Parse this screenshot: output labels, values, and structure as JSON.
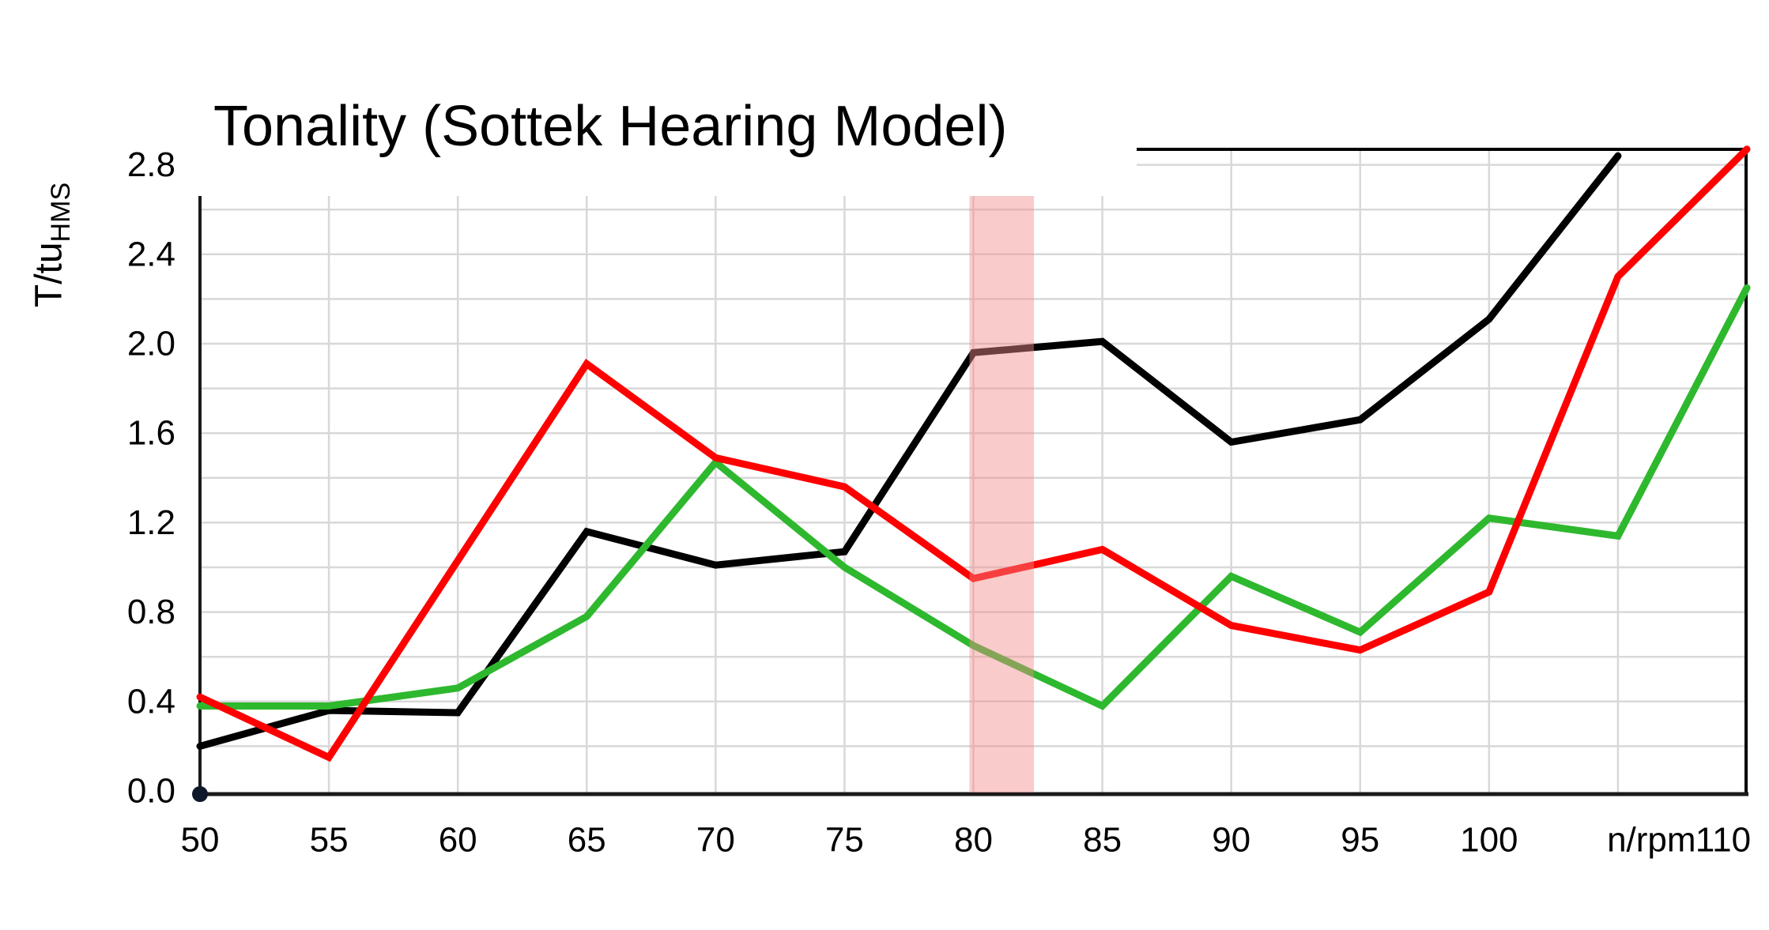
{
  "chart_data": {
    "type": "line",
    "title": "Tonality (Sottek Hearing Model)",
    "y_axis_title": {
      "main": "T/tu",
      "sub": "HMS"
    },
    "x_unit_label": "n/rpm",
    "x_unit_label_position": 106.3,
    "xlim": [
      50,
      110
    ],
    "ylim": [
      0,
      2.877
    ],
    "grid": {
      "on": true,
      "x_step": 5,
      "y_step": 0.2
    },
    "x_ticks": [
      {
        "value": 50,
        "label": "50",
        "offset": 0
      },
      {
        "value": 55,
        "label": "55",
        "offset": 0
      },
      {
        "value": 60,
        "label": "60",
        "offset": 0
      },
      {
        "value": 65,
        "label": "65",
        "offset": 0
      },
      {
        "value": 70,
        "label": "70",
        "offset": 0
      },
      {
        "value": 75,
        "label": "75",
        "offset": 0
      },
      {
        "value": 80,
        "label": "80",
        "offset": 0
      },
      {
        "value": 85,
        "label": "85",
        "offset": 0
      },
      {
        "value": 90,
        "label": "90",
        "offset": 0
      },
      {
        "value": 95,
        "label": "95",
        "offset": 0
      },
      {
        "value": 100,
        "label": "100",
        "offset": 0
      },
      {
        "value": 110,
        "label": "110",
        "offset": -30
      }
    ],
    "y_ticks": [
      {
        "value": 0.0,
        "label": "0.0"
      },
      {
        "value": 0.4,
        "label": "0.4"
      },
      {
        "value": 0.8,
        "label": "0.8"
      },
      {
        "value": 1.2,
        "label": "1.2"
      },
      {
        "value": 1.6,
        "label": "1.6"
      },
      {
        "value": 2.0,
        "label": "2.0"
      },
      {
        "value": 2.4,
        "label": "2.4"
      },
      {
        "value": 2.8,
        "label": "2.8"
      }
    ],
    "series": [
      {
        "name": "series-black",
        "color": "#000000",
        "x": [
          50,
          55,
          60,
          65,
          70,
          75,
          80,
          85,
          90,
          95,
          100,
          105
        ],
        "values": [
          0.2,
          0.36,
          0.35,
          1.16,
          1.01,
          1.07,
          1.96,
          2.01,
          1.56,
          1.66,
          2.11,
          2.84
        ]
      },
      {
        "name": "series-green",
        "color": "#2eb82e",
        "x": [
          50,
          55,
          60,
          65,
          70,
          75,
          80,
          85,
          90,
          95,
          100,
          105,
          110
        ],
        "values": [
          0.38,
          0.38,
          0.46,
          0.78,
          1.47,
          1.0,
          0.65,
          0.38,
          0.96,
          0.71,
          1.22,
          1.14,
          2.25
        ]
      },
      {
        "name": "series-red",
        "color": "#fe0000",
        "x": [
          50,
          55,
          60,
          65,
          70,
          75,
          80,
          85,
          90,
          95,
          100,
          105,
          110
        ],
        "values": [
          0.42,
          0.15,
          1.03,
          1.91,
          1.49,
          1.36,
          0.95,
          1.08,
          0.74,
          0.63,
          0.89,
          2.3,
          2.87
        ]
      }
    ],
    "highlight_band": {
      "x_start": 80,
      "x_end": 82.5,
      "color": "#f28b8b",
      "opacity": 0.45
    },
    "origin_marker": {
      "x": 50,
      "value": 0.0,
      "color": "#0f172a"
    },
    "style": {
      "grid_color": "#d8d8d8",
      "axis_color": "#1a1a1a",
      "border_color": "#000000",
      "tick_label_color": "#000000"
    }
  }
}
